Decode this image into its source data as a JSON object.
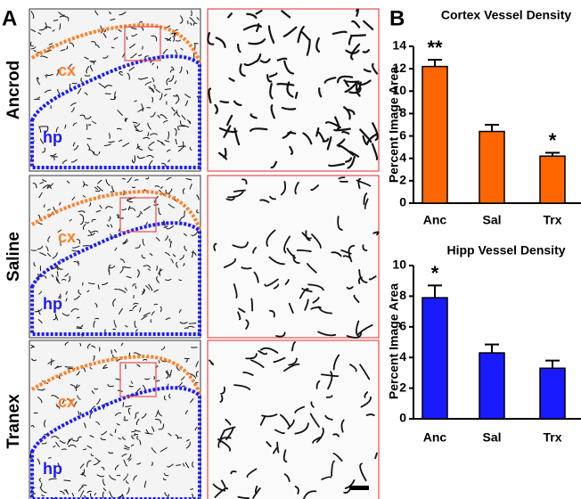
{
  "panel_labels": [
    "A",
    "B"
  ],
  "rows": [
    {
      "label": "Ancrod",
      "regions": [
        "cx",
        "hp"
      ]
    },
    {
      "label": "Saline",
      "regions": [
        "cx",
        "hp"
      ]
    },
    {
      "label": "Tranex",
      "regions": [
        "cx",
        "hp"
      ]
    }
  ],
  "chart_data": [
    {
      "type": "bar",
      "title": "Cortex Vessel Density",
      "y_label": "Percent Image Area",
      "categories": [
        "Anc",
        "Sal",
        "Trx"
      ],
      "values": [
        12.2,
        6.4,
        4.2
      ],
      "errors": [
        0.6,
        0.6,
        0.3
      ],
      "annotations": [
        "**",
        null,
        "*"
      ],
      "color": "#ff6600",
      "ylim": [
        0,
        14
      ],
      "yticks": [
        0,
        2,
        4,
        6,
        8,
        10,
        12,
        14
      ]
    },
    {
      "type": "bar",
      "title": "Hipp Vessel Density",
      "y_label": "Percent Image Area",
      "categories": [
        "Anc",
        "Sal",
        "Trx"
      ],
      "values": [
        7.9,
        4.3,
        3.3
      ],
      "errors": [
        0.8,
        0.55,
        0.5
      ],
      "annotations": [
        "*",
        null,
        null
      ],
      "color": "#1a1aff",
      "ylim": [
        0,
        10
      ],
      "yticks": [
        0,
        2,
        4,
        6,
        8,
        10
      ]
    }
  ]
}
